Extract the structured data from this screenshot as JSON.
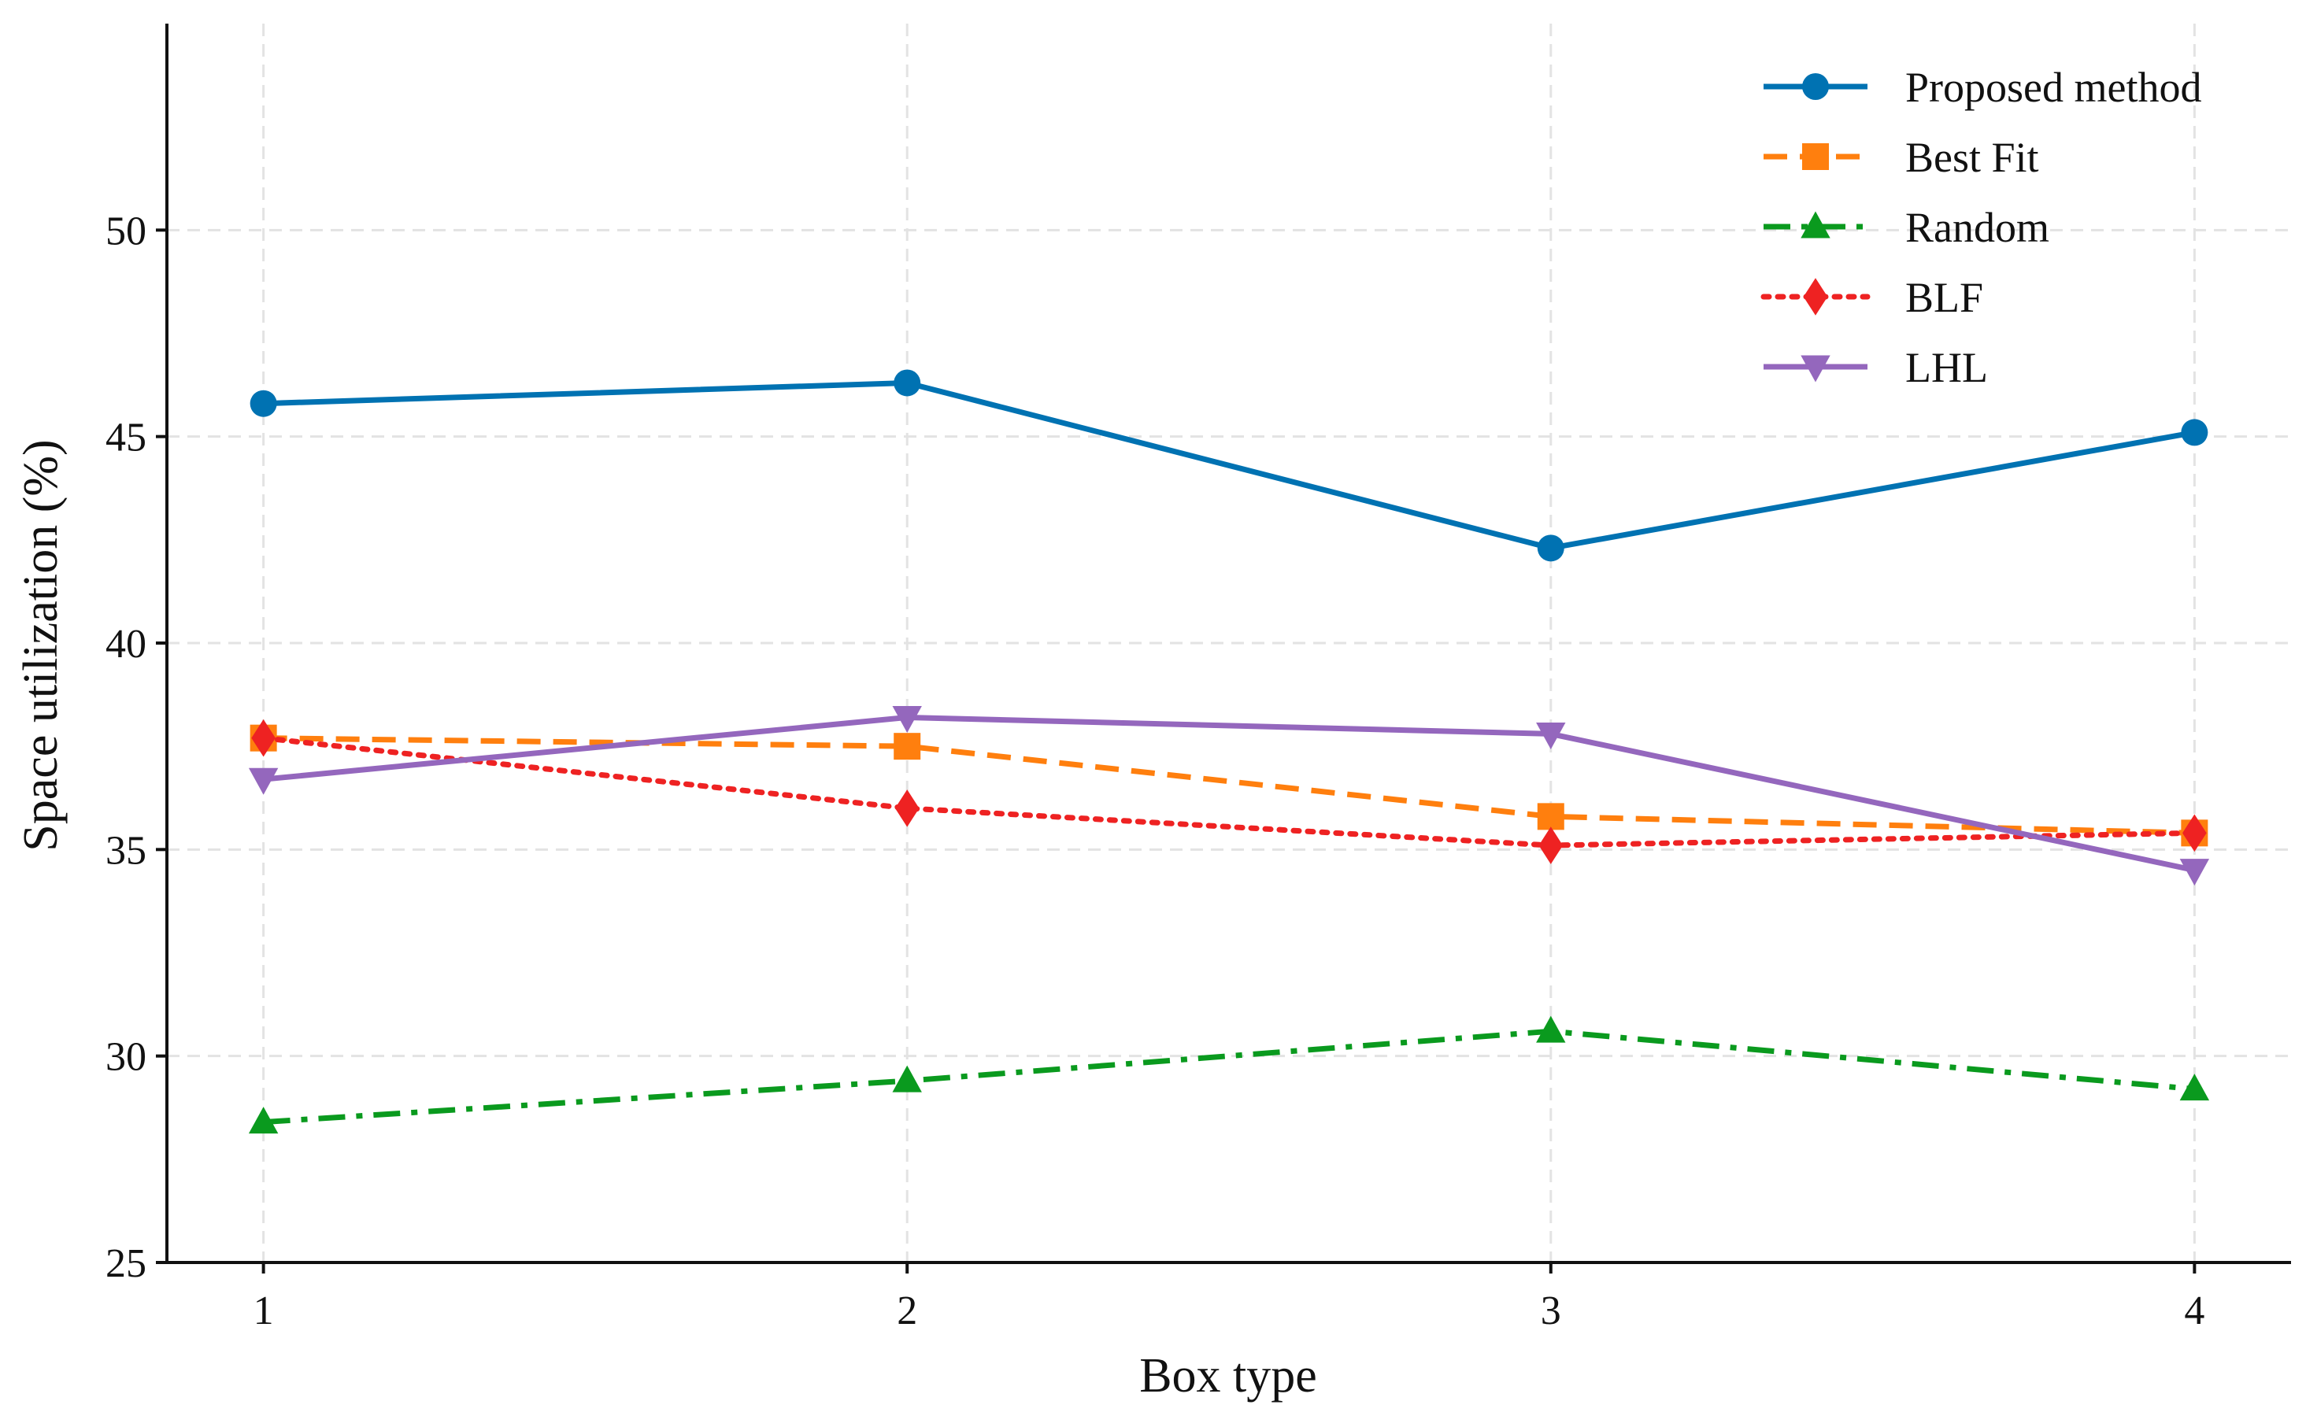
{
  "chart_data": {
    "type": "line",
    "title": "",
    "xlabel": "Box type",
    "ylabel": "Space utilization (%)",
    "x": [
      1,
      2,
      3,
      4
    ],
    "xticks": [
      "1",
      "2",
      "3",
      "4"
    ],
    "xlim": [
      0.85,
      4.15
    ],
    "ylim": [
      25,
      55
    ],
    "yticks": [
      25,
      30,
      35,
      40,
      45,
      50
    ],
    "grid": true,
    "legend_position": "top-right",
    "series": [
      {
        "name": "Proposed method",
        "values": [
          45.8,
          46.3,
          42.3,
          45.1
        ],
        "color": "#0072b2",
        "marker": "circle",
        "line_style": "solid"
      },
      {
        "name": "Best Fit",
        "values": [
          37.7,
          37.5,
          35.8,
          35.4
        ],
        "color": "#ff7f0e",
        "marker": "square",
        "line_style": "dashed"
      },
      {
        "name": "Random",
        "values": [
          28.4,
          29.4,
          30.6,
          29.2
        ],
        "color": "#0a9a1e",
        "marker": "triangle-up",
        "line_style": "dashdot"
      },
      {
        "name": "BLF",
        "values": [
          37.7,
          36.0,
          35.1,
          35.4
        ],
        "color": "#ee2222",
        "marker": "diamond",
        "line_style": "dotted"
      },
      {
        "name": "LHL",
        "values": [
          36.7,
          38.2,
          37.8,
          34.5
        ],
        "color": "#9467bd",
        "marker": "triangle-down",
        "line_style": "solid"
      }
    ]
  }
}
